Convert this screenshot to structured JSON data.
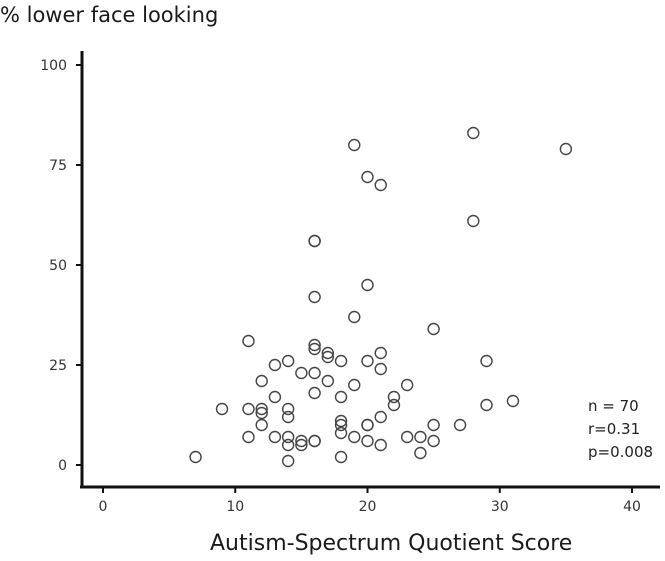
{
  "chart_data": {
    "type": "scatter",
    "ylabel": "% lower face looking",
    "xlabel": "Autism-Spectrum Quotient Score",
    "xlim": [
      0,
      40
    ],
    "ylim": [
      0,
      100
    ],
    "x_ticks": [
      "0",
      "10",
      "20",
      "30",
      "40"
    ],
    "y_ticks": [
      "0",
      "25",
      "50",
      "75",
      "100"
    ],
    "grid": false,
    "annotations": [
      "n = 70",
      "r=0.31",
      "p=0.008"
    ],
    "point_color": "#444444",
    "points": [
      [
        7,
        2
      ],
      [
        9,
        14
      ],
      [
        11,
        31
      ],
      [
        11,
        14
      ],
      [
        11,
        7
      ],
      [
        12,
        21
      ],
      [
        12,
        14
      ],
      [
        12,
        13
      ],
      [
        12,
        10
      ],
      [
        13,
        25
      ],
      [
        13,
        17
      ],
      [
        13,
        7
      ],
      [
        14,
        26
      ],
      [
        14,
        14
      ],
      [
        14,
        12
      ],
      [
        14,
        7
      ],
      [
        14,
        5
      ],
      [
        14,
        1
      ],
      [
        15,
        23
      ],
      [
        15,
        6
      ],
      [
        15,
        5
      ],
      [
        16,
        56
      ],
      [
        16,
        56
      ],
      [
        16,
        42
      ],
      [
        16,
        30
      ],
      [
        16,
        29
      ],
      [
        16,
        23
      ],
      [
        16,
        18
      ],
      [
        16,
        6
      ],
      [
        16,
        6
      ],
      [
        17,
        28
      ],
      [
        17,
        27
      ],
      [
        17,
        21
      ],
      [
        18,
        26
      ],
      [
        18,
        17
      ],
      [
        18,
        11
      ],
      [
        18,
        10
      ],
      [
        18,
        8
      ],
      [
        18,
        2
      ],
      [
        19,
        80
      ],
      [
        19,
        37
      ],
      [
        19,
        20
      ],
      [
        19,
        7
      ],
      [
        20,
        72
      ],
      [
        20,
        45
      ],
      [
        20,
        26
      ],
      [
        20,
        10
      ],
      [
        20,
        10
      ],
      [
        20,
        6
      ],
      [
        21,
        70
      ],
      [
        21,
        28
      ],
      [
        21,
        24
      ],
      [
        21,
        12
      ],
      [
        21,
        5
      ],
      [
        22,
        17
      ],
      [
        22,
        15
      ],
      [
        23,
        20
      ],
      [
        23,
        7
      ],
      [
        24,
        7
      ],
      [
        24,
        3
      ],
      [
        25,
        34
      ],
      [
        25,
        10
      ],
      [
        25,
        6
      ],
      [
        27,
        10
      ],
      [
        28,
        83
      ],
      [
        28,
        61
      ],
      [
        29,
        26
      ],
      [
        29,
        15
      ],
      [
        31,
        16
      ],
      [
        35,
        79
      ]
    ]
  }
}
